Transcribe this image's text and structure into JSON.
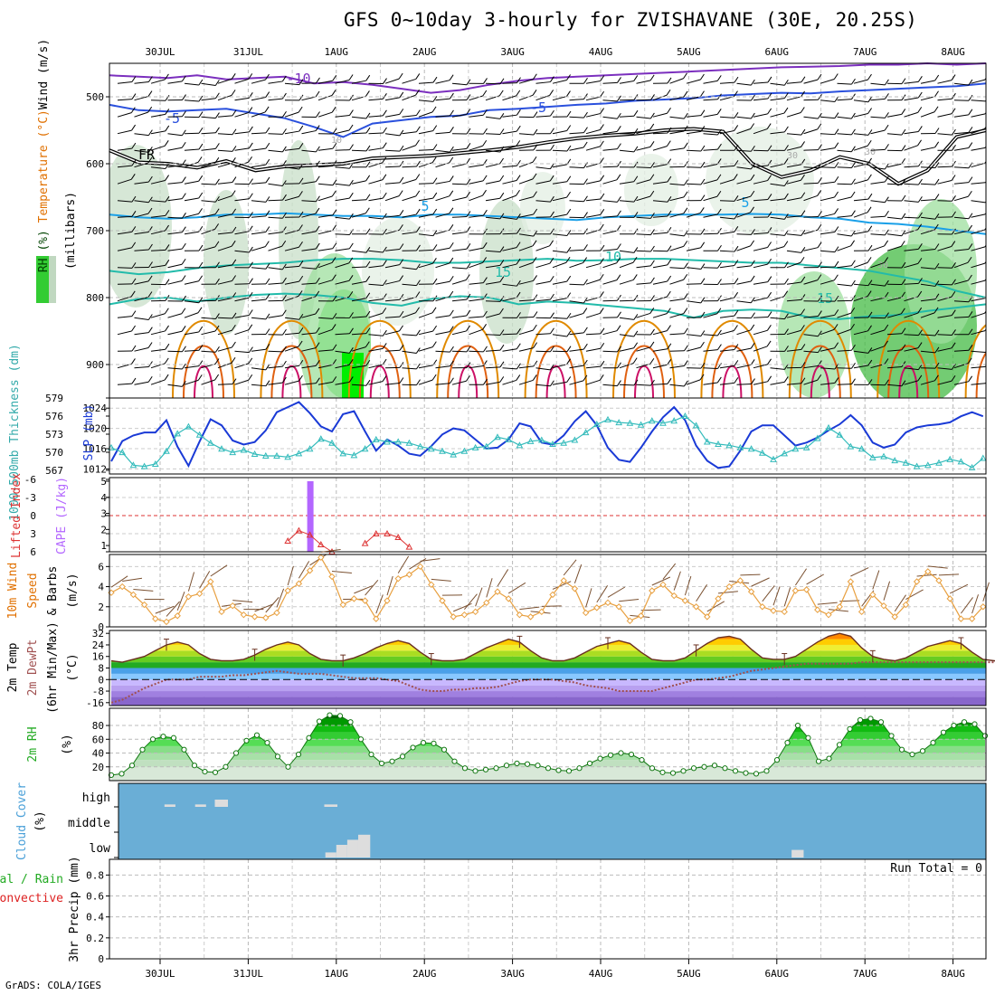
{
  "title": "GFS 0~10day 3-hourly for ZVISHAVANE (30E, 20.25S)",
  "credit": "GrADS: COLA/IGES",
  "dates": [
    "30JUL",
    "31JUL",
    "1AUG",
    "2AUG",
    "3AUG",
    "4AUG",
    "5AUG",
    "6AUG",
    "7AUG",
    "8AUG"
  ],
  "colors": {
    "rh": "#33cc33",
    "temp_upper": "#1e90ff",
    "cold": "#7b2fbe",
    "warm": "#e08a00",
    "slp": "#1a3ad6",
    "thickness": "#33bbbb",
    "cape": "#b366ff",
    "lifted": "#dd3333",
    "wind": "#e8a040",
    "dewpt": "#a05050",
    "cloud_bg": "#6aaed6",
    "cloud_fill": "#dddddd"
  },
  "chart_data": [
    {
      "type": "heatmap",
      "panel": "upper-air",
      "ylabel_parts": [
        "RH (%)",
        "Temperature (°C)",
        "Wind (m/s)"
      ],
      "yunit": "(millibars)",
      "yticks": [
        "500",
        "600",
        "700",
        "800",
        "900"
      ],
      "ylim": [
        950,
        450
      ],
      "contour_labels": [
        "-10",
        "-5",
        "-5",
        "FR",
        "5",
        "5",
        "10",
        "15",
        "15",
        "10",
        "30",
        "30",
        "30"
      ],
      "isotherms": [
        {
          "name": "-10",
          "mb": [
            468,
            470,
            472,
            468,
            474,
            472,
            470,
            480,
            478,
            482,
            488,
            494,
            490,
            482,
            476,
            472,
            470,
            468,
            466,
            464,
            462,
            460,
            458,
            456,
            455,
            454,
            452,
            452,
            450,
            452,
            450
          ]
        },
        {
          "name": "-5",
          "mb": [
            512,
            520,
            522,
            520,
            518,
            525,
            532,
            545,
            560,
            540,
            535,
            530,
            528,
            520,
            518,
            515,
            512,
            510,
            506,
            504,
            502,
            498,
            496,
            494,
            495,
            492,
            490,
            488,
            486,
            484,
            480
          ]
        },
        {
          "name": "FR",
          "mb": [
            580,
            598,
            600,
            606,
            596,
            610,
            604,
            602,
            600,
            592,
            590,
            588,
            584,
            580,
            575,
            568,
            562,
            558,
            555,
            550,
            548,
            552,
            600,
            620,
            610,
            590,
            600,
            630,
            610,
            560,
            550
          ]
        },
        {
          "name": "5",
          "mb": [
            676,
            680,
            682,
            680,
            676,
            676,
            674,
            676,
            678,
            678,
            680,
            676,
            676,
            678,
            680,
            682,
            684,
            680,
            678,
            676,
            676,
            676,
            675,
            676,
            680,
            682,
            688,
            690,
            694,
            700,
            705
          ]
        },
        {
          "name": "10",
          "mb": [
            760,
            765,
            762,
            756,
            752,
            750,
            748,
            744,
            742,
            742,
            744,
            748,
            748,
            746,
            744,
            742,
            745,
            744,
            742,
            742,
            744,
            746,
            748,
            748,
            752,
            756,
            760,
            768,
            776,
            790,
            800
          ]
        },
        {
          "name": "15",
          "mb": [
            810,
            802,
            800,
            806,
            800,
            796,
            794,
            796,
            800,
            808,
            812,
            802,
            798,
            800,
            810,
            806,
            808,
            812,
            816,
            820,
            830,
            820,
            818,
            820,
            830,
            832,
            828,
            826,
            820,
            815,
            810
          ]
        }
      ]
    },
    {
      "type": "line",
      "panel": "slp-thickness",
      "ylabel": "1000-500mb Thickness (dm)",
      "ylabel2": "SLP (mb)",
      "yticks_left": [
        "579",
        "576",
        "573",
        "570",
        "567"
      ],
      "yticks_right": [
        "1024",
        "1020",
        "1016",
        "1012"
      ],
      "ylim_slp": [
        1011,
        1026
      ],
      "series": [
        {
          "name": "SLP (mb)",
          "values": [
            1013.5,
            1017.5,
            1018.6,
            1019.2,
            1019.2,
            1021.6,
            1016.4,
            1012.6,
            1017.4,
            1021.8,
            1020.6,
            1017.6,
            1016.8,
            1017.3,
            1019.6,
            1023.2,
            1024.2,
            1025.2,
            1023.0,
            1020.4,
            1019.4,
            1022.8,
            1023.4,
            1019.4,
            1015.6,
            1017.8,
            1016.6,
            1015.0,
            1014.6,
            1016.5,
            1018.8,
            1020.0,
            1019.6,
            1017.8,
            1016.0,
            1016.2,
            1017.8,
            1021.0,
            1020.4,
            1017.2,
            1016.8,
            1018.6,
            1021.4,
            1023.4,
            1020.6,
            1016.2,
            1013.8,
            1013.4,
            1016.2,
            1019.4,
            1022.2,
            1024.2,
            1021.6,
            1016.6,
            1013.6,
            1012.2,
            1012.5,
            1015.6,
            1019.4,
            1020.6,
            1020.6,
            1018.6,
            1016.6,
            1017.2,
            1018.2,
            1019.6,
            1020.8,
            1022.6,
            1020.6,
            1017.2,
            1016.2,
            1016.8,
            1019.2,
            1020.2,
            1020.6,
            1020.8,
            1021.2,
            1022.4,
            1023.2,
            1022.4
          ]
        },
        {
          "name": "Thickness (dm)",
          "values": [
            571.0,
            570.2,
            568.0,
            567.8,
            568.2,
            570.4,
            573.4,
            574.6,
            573.2,
            571.8,
            570.8,
            570.2,
            570.6,
            569.9,
            569.6,
            569.6,
            569.4,
            570.0,
            570.8,
            572.5,
            571.8,
            570.0,
            569.7,
            570.8,
            572.4,
            572.0,
            572.0,
            571.8,
            571.2,
            570.8,
            570.4,
            569.8,
            570.4,
            571.0,
            571.2,
            572.8,
            572.4,
            571.4,
            572.1,
            572.3,
            571.6,
            571.8,
            572.3,
            573.6,
            575.0,
            575.8,
            575.3,
            575.2,
            574.9,
            575.6,
            575.2,
            575.6,
            576.4,
            574.8,
            572.0,
            571.6,
            571.4,
            571.0,
            570.8,
            570.1,
            569.0,
            570.0,
            570.8,
            571.0,
            572.6,
            574.4,
            573.2,
            571.2,
            570.8,
            569.3,
            569.5,
            568.8,
            568.4,
            567.8,
            568.0,
            568.4,
            569.0,
            568.6,
            567.6,
            569.2
          ]
        }
      ]
    },
    {
      "type": "bar",
      "panel": "cape-lifted-index",
      "ylabel": "Lifted Index",
      "ylabel2": "CAPE (J/kg)",
      "yticks_left": [
        "-6",
        "-3",
        "0",
        "3",
        "6"
      ],
      "yticks_right": [
        "5",
        "4",
        "3",
        "2",
        "1"
      ],
      "cape_bar": {
        "time_index": 18,
        "value": 5.0
      },
      "lifted_index": [
        {
          "start": 16,
          "values": [
            4.2,
            2.5,
            3.2,
            4.8,
            6.0
          ]
        },
        {
          "start": 23,
          "values": [
            4.6,
            3.0,
            3.0,
            3.6,
            5.2
          ]
        }
      ]
    },
    {
      "type": "line",
      "panel": "10m-wind",
      "ylabel": "10m Wind Speed (m/s) & Barbs",
      "yticks": [
        "6",
        "4",
        "2",
        "0"
      ],
      "ylim": [
        0,
        7
      ],
      "series": [
        {
          "name": "10m Wind Speed (m/s)",
          "values": [
            3.4,
            4.0,
            3.2,
            2.2,
            0.8,
            0.5,
            1.1,
            3.0,
            3.3,
            4.5,
            1.5,
            2.1,
            1.2,
            1.0,
            0.9,
            1.4,
            3.6,
            4.3,
            5.6,
            6.9,
            5.0,
            2.2,
            2.8,
            2.6,
            0.8,
            2.6,
            4.8,
            5.2,
            6.0,
            4.2,
            2.6,
            1.0,
            1.2,
            1.5,
            2.4,
            3.5,
            2.8,
            1.2,
            1.0,
            1.5,
            3.2,
            4.6,
            3.8,
            1.4,
            1.9,
            2.4,
            2.0,
            0.6,
            1.1,
            3.6,
            4.2,
            3.1,
            2.6,
            2.0,
            1.0,
            2.8,
            4.0,
            4.6,
            3.5,
            2.0,
            1.6,
            1.5,
            3.6,
            3.7,
            1.7,
            1.2,
            2.0,
            4.5,
            1.5,
            3.2,
            2.1,
            1.0,
            2.2,
            4.5,
            5.5,
            4.6,
            2.8,
            0.8,
            0.8,
            2.0
          ]
        }
      ]
    },
    {
      "type": "area",
      "panel": "2m-temp",
      "ylabel": "2m Temp / 2m DewPt (6hr Min/Max) (°C)",
      "yticks": [
        "32",
        "24",
        "16",
        "8",
        "0",
        "-8",
        "-16"
      ],
      "ylim": [
        -18,
        34
      ],
      "series": [
        {
          "name": "2m Temp",
          "values": [
            13,
            12,
            14,
            16,
            20,
            24,
            26,
            24,
            18,
            14,
            13,
            13,
            14,
            17,
            21,
            24,
            26,
            24,
            18,
            14,
            13,
            13,
            15,
            18,
            22,
            25,
            27,
            25,
            19,
            14,
            13,
            13,
            14,
            18,
            22,
            25,
            28,
            26,
            20,
            15,
            13,
            13,
            15,
            19,
            23,
            25,
            27,
            25,
            19,
            14,
            13,
            13,
            15,
            20,
            25,
            29,
            30,
            28,
            21,
            15,
            14,
            14,
            16,
            21,
            26,
            30,
            32,
            30,
            22,
            16,
            14,
            13,
            15,
            19,
            23,
            25,
            27,
            25,
            19,
            14,
            13,
            12,
            13,
            13
          ]
        },
        {
          "name": "2m DewPt",
          "values": [
            -16,
            -14,
            -10,
            -6,
            -3,
            0,
            0,
            0,
            2,
            2,
            2,
            3,
            3,
            4,
            5,
            6,
            5,
            4,
            4,
            4,
            3,
            2,
            1,
            1,
            1,
            0,
            -1,
            -4,
            -7,
            -8,
            -8,
            -7,
            -7,
            -6,
            -6,
            -5,
            -3,
            -1,
            0,
            0,
            0,
            -1,
            -2,
            -4,
            -5,
            -6,
            -8,
            -8,
            -8,
            -8,
            -6,
            -4,
            -2,
            0,
            0,
            1,
            2,
            4,
            6,
            7,
            8,
            9,
            10,
            11,
            11,
            11,
            11,
            11,
            12,
            12,
            12,
            12,
            12,
            12,
            12,
            12,
            12,
            12,
            12,
            12,
            12,
            12,
            12
          ]
        }
      ]
    },
    {
      "type": "area",
      "panel": "2m-rh",
      "ylabel": "2m RH (%)",
      "yticks": [
        "80",
        "60",
        "40",
        "20"
      ],
      "ylim": [
        0,
        100
      ],
      "series": [
        {
          "name": "2m RH",
          "values": [
            8,
            10,
            22,
            45,
            60,
            64,
            62,
            45,
            22,
            13,
            12,
            20,
            40,
            58,
            66,
            55,
            35,
            20,
            38,
            62,
            86,
            95,
            94,
            85,
            60,
            38,
            25,
            28,
            35,
            48,
            55,
            54,
            45,
            28,
            18,
            14,
            16,
            18,
            22,
            25,
            24,
            22,
            18,
            15,
            14,
            18,
            25,
            32,
            37,
            40,
            38,
            30,
            18,
            12,
            11,
            14,
            18,
            20,
            22,
            18,
            14,
            11,
            10,
            14,
            30,
            55,
            80,
            62,
            28,
            32,
            52,
            75,
            88,
            90,
            85,
            65,
            45,
            38,
            43,
            55,
            70,
            80,
            85,
            82,
            65
          ]
        }
      ]
    },
    {
      "type": "heatmap",
      "panel": "cloud-cover",
      "ylabel": "Cloud Cover (%)",
      "yticks": [
        "high",
        "middle",
        "low"
      ],
      "blocks": [
        {
          "layer": "high",
          "start": 4.2,
          "end": 5.2,
          "value": 10
        },
        {
          "layer": "high",
          "start": 7.0,
          "end": 8.0,
          "value": 10
        },
        {
          "layer": "high",
          "start": 8.8,
          "end": 10.0,
          "value": 30
        },
        {
          "layer": "high",
          "start": 18.8,
          "end": 20.0,
          "value": 10
        },
        {
          "layer": "low",
          "start": 18.9,
          "end": 19.9,
          "value": 20
        },
        {
          "layer": "low",
          "start": 19.9,
          "end": 20.9,
          "value": 50
        },
        {
          "layer": "low",
          "start": 20.9,
          "end": 21.9,
          "value": 70
        },
        {
          "layer": "low",
          "start": 21.9,
          "end": 23.0,
          "value": 90
        },
        {
          "layer": "low",
          "start": 61.5,
          "end": 62.6,
          "value": 30
        }
      ]
    },
    {
      "type": "bar",
      "panel": "precip",
      "ylabel": "3hr Precip (mm)",
      "ylabel_parts": [
        "Total / Rain",
        "Convective"
      ],
      "yticks": [
        "0.8",
        "0.6",
        "0.4",
        "0.2",
        "0"
      ],
      "ylim": [
        0,
        0.95
      ],
      "annotation": "Run Total = 0",
      "values": []
    }
  ]
}
